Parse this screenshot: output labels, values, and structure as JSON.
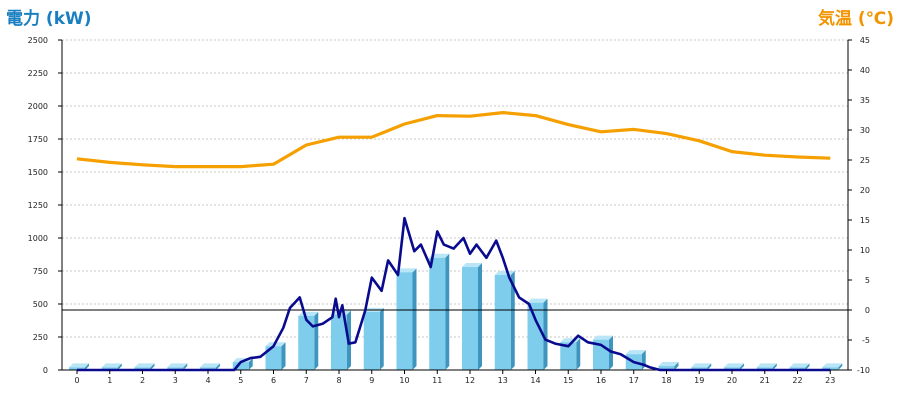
{
  "left_axis_title": "電力 (kW)",
  "right_axis_title": "気温 (℃)",
  "colors": {
    "bar": "#7ecdec",
    "bar_side": "#3f95bd",
    "bar_top": "#b8e6f7",
    "power_line": "#0a0a8f",
    "temp_line": "#f5a000",
    "left_title": "#1a7fc1",
    "right_title": "#f29400"
  },
  "chart_data": {
    "type": "bar",
    "categories": [
      "0",
      "1",
      "2",
      "3",
      "4",
      "5",
      "6",
      "7",
      "8",
      "9",
      "10",
      "11",
      "12",
      "13",
      "14",
      "15",
      "16",
      "17",
      "18",
      "19",
      "20",
      "21",
      "22",
      "23"
    ],
    "ylim_left": [
      0,
      2500
    ],
    "ylim_right": [
      -10,
      45
    ],
    "left_ticks": [
      "0",
      "250",
      "500",
      "750",
      "1000",
      "1250",
      "1500",
      "1750",
      "2000",
      "2250",
      "2500"
    ],
    "right_ticks": [
      "-10",
      "-5",
      "0",
      "5",
      "10",
      "15",
      "20",
      "25",
      "30",
      "35",
      "40",
      "45"
    ],
    "grid": true,
    "series": [
      {
        "type": "bar",
        "axis": "left",
        "values": [
          20,
          20,
          20,
          20,
          20,
          60,
          180,
          410,
          420,
          440,
          740,
          850,
          780,
          720,
          510,
          210,
          230,
          120,
          30,
          20,
          20,
          20,
          20,
          20
        ]
      },
      {
        "type": "line",
        "axis": "left",
        "x": [
          0,
          1,
          2,
          3,
          4,
          4.8,
          5,
          5.3,
          5.6,
          6,
          6.3,
          6.5,
          6.8,
          7,
          7.2,
          7.5,
          7.8,
          7.9,
          8,
          8.1,
          8.3,
          8.5,
          8.8,
          9,
          9.3,
          9.5,
          9.8,
          10,
          10.3,
          10.5,
          10.8,
          11,
          11.2,
          11.5,
          11.8,
          12,
          12.2,
          12.5,
          12.8,
          13,
          13.2,
          13.5,
          13.8,
          14,
          14.3,
          14.6,
          15,
          15.3,
          15.6,
          16,
          16.3,
          16.6,
          17,
          17.3,
          17.5,
          17.8,
          18,
          19,
          20,
          21,
          22,
          23
        ],
        "y": [
          0,
          0,
          0,
          0,
          0,
          0,
          60,
          90,
          100,
          180,
          320,
          470,
          550,
          380,
          330,
          350,
          400,
          540,
          400,
          490,
          200,
          210,
          450,
          700,
          600,
          830,
          720,
          1150,
          900,
          950,
          780,
          1050,
          950,
          920,
          1000,
          880,
          950,
          850,
          980,
          850,
          700,
          550,
          500,
          380,
          230,
          200,
          180,
          260,
          210,
          190,
          140,
          120,
          60,
          40,
          20,
          0,
          0,
          0,
          0,
          0,
          0,
          0
        ]
      },
      {
        "type": "line",
        "axis": "right",
        "x": [
          0,
          1,
          2,
          3,
          4,
          5,
          6,
          7,
          8,
          9,
          10,
          11,
          12,
          13,
          14,
          15,
          16,
          17,
          18,
          19,
          20,
          21,
          22,
          23
        ],
        "y": [
          25.2,
          24.6,
          24.2,
          23.9,
          23.9,
          23.9,
          24.3,
          27.5,
          28.8,
          28.8,
          31.0,
          32.4,
          32.3,
          32.9,
          32.4,
          30.9,
          29.7,
          30.1,
          29.4,
          28.2,
          26.4,
          25.8,
          25.5,
          25.3
        ]
      }
    ]
  }
}
